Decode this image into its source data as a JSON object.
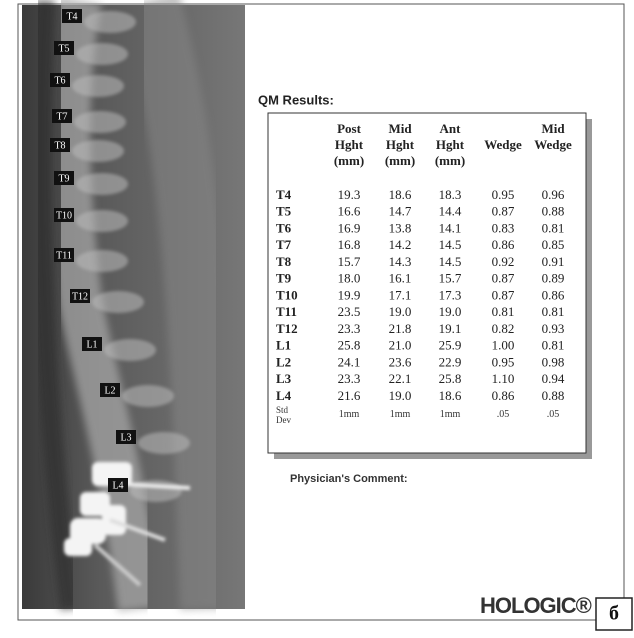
{
  "image_labels": [
    "T4",
    "T5",
    "T6",
    "T7",
    "T8",
    "T9",
    "T10",
    "T11",
    "T12",
    "L1",
    "L2",
    "L3",
    "L4"
  ],
  "report": {
    "title": "QM Results:",
    "table": {
      "header": [
        [
          "Post",
          "Hght",
          "(mm)"
        ],
        [
          "Mid",
          "Hght",
          "(mm)"
        ],
        [
          "Ant",
          "Hght",
          "(mm)"
        ],
        [
          "Wedge"
        ],
        [
          "Mid",
          "Wedge"
        ]
      ],
      "rows": [
        {
          "label": "T4",
          "cells": [
            "19.3",
            "18.6",
            "18.3",
            "0.95",
            "0.96"
          ]
        },
        {
          "label": "T5",
          "cells": [
            "16.6",
            "14.7",
            "14.4",
            "0.87",
            "0.88"
          ]
        },
        {
          "label": "T6",
          "cells": [
            "16.9",
            "13.8",
            "14.1",
            "0.83",
            "0.81"
          ]
        },
        {
          "label": "T7",
          "cells": [
            "16.8",
            "14.2",
            "14.5",
            "0.86",
            "0.85"
          ]
        },
        {
          "label": "T8",
          "cells": [
            "15.7",
            "14.3",
            "14.5",
            "0.92",
            "0.91"
          ]
        },
        {
          "label": "T9",
          "cells": [
            "18.0",
            "16.1",
            "15.7",
            "0.87",
            "0.89"
          ]
        },
        {
          "label": "T10",
          "cells": [
            "19.9",
            "17.1",
            "17.3",
            "0.87",
            "0.86"
          ]
        },
        {
          "label": "T11",
          "cells": [
            "23.5",
            "19.0",
            "19.0",
            "0.81",
            "0.81"
          ]
        },
        {
          "label": "T12",
          "cells": [
            "23.3",
            "21.8",
            "19.1",
            "0.82",
            "0.93"
          ]
        },
        {
          "label": "L1",
          "cells": [
            "25.8",
            "21.0",
            "25.9",
            "1.00",
            "0.81"
          ]
        },
        {
          "label": "L2",
          "cells": [
            "24.1",
            "23.6",
            "22.9",
            "0.95",
            "0.98"
          ]
        },
        {
          "label": "L3",
          "cells": [
            "23.3",
            "22.1",
            "25.8",
            "1.10",
            "0.94"
          ]
        },
        {
          "label": "L4",
          "cells": [
            "21.6",
            "19.0",
            "18.6",
            "0.86",
            "0.88"
          ]
        }
      ],
      "std_dev": {
        "label": [
          "Std",
          "Dev"
        ],
        "cells": [
          "1mm",
          "1mm",
          "1mm",
          ".05",
          ".05"
        ]
      }
    },
    "comment_label": "Physician's Comment:",
    "brand": "HOLOGIC®"
  },
  "panel_letter": "б"
}
